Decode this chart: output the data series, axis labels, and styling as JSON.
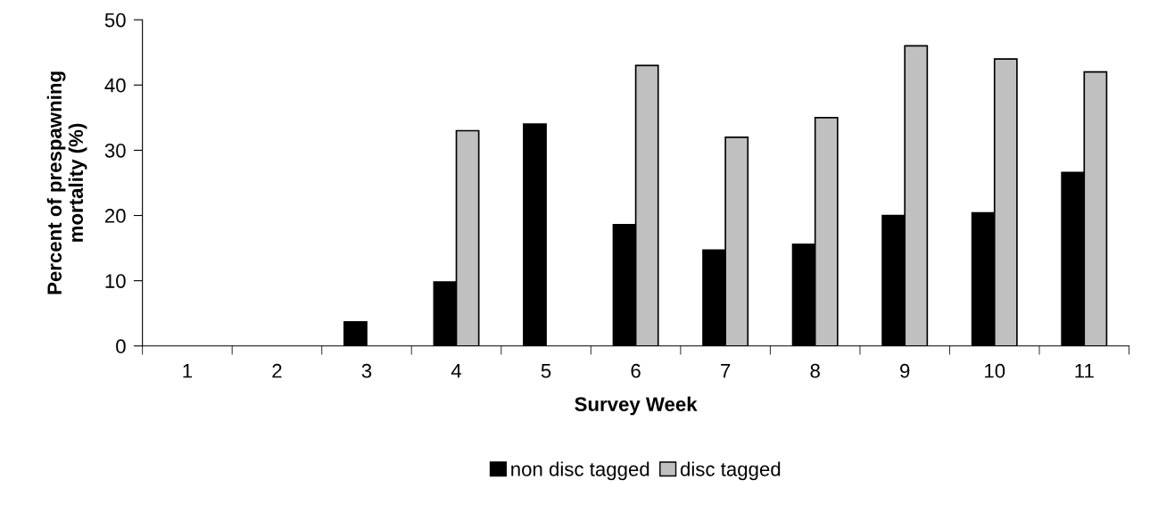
{
  "chart_data": {
    "type": "bar",
    "xlabel": "Survey Week",
    "ylabel": "Percent of prespawning\nmortality (%)",
    "categories": [
      "1",
      "2",
      "3",
      "4",
      "5",
      "6",
      "7",
      "8",
      "9",
      "10",
      "11"
    ],
    "series": [
      {
        "name": "non disc tagged",
        "color": "#000000",
        "values": [
          0,
          0,
          3.7,
          9.8,
          34,
          18.6,
          14.7,
          15.6,
          20,
          20.4,
          26.6
        ]
      },
      {
        "name": "disc tagged",
        "color": "#c0c0c0",
        "values": [
          0,
          0,
          0,
          33,
          0,
          43,
          32,
          35,
          46,
          44,
          42
        ]
      }
    ],
    "ylim": [
      0,
      50
    ],
    "yticks": [
      0,
      10,
      20,
      30,
      40,
      50
    ],
    "grid": false,
    "legend": "bottom"
  }
}
